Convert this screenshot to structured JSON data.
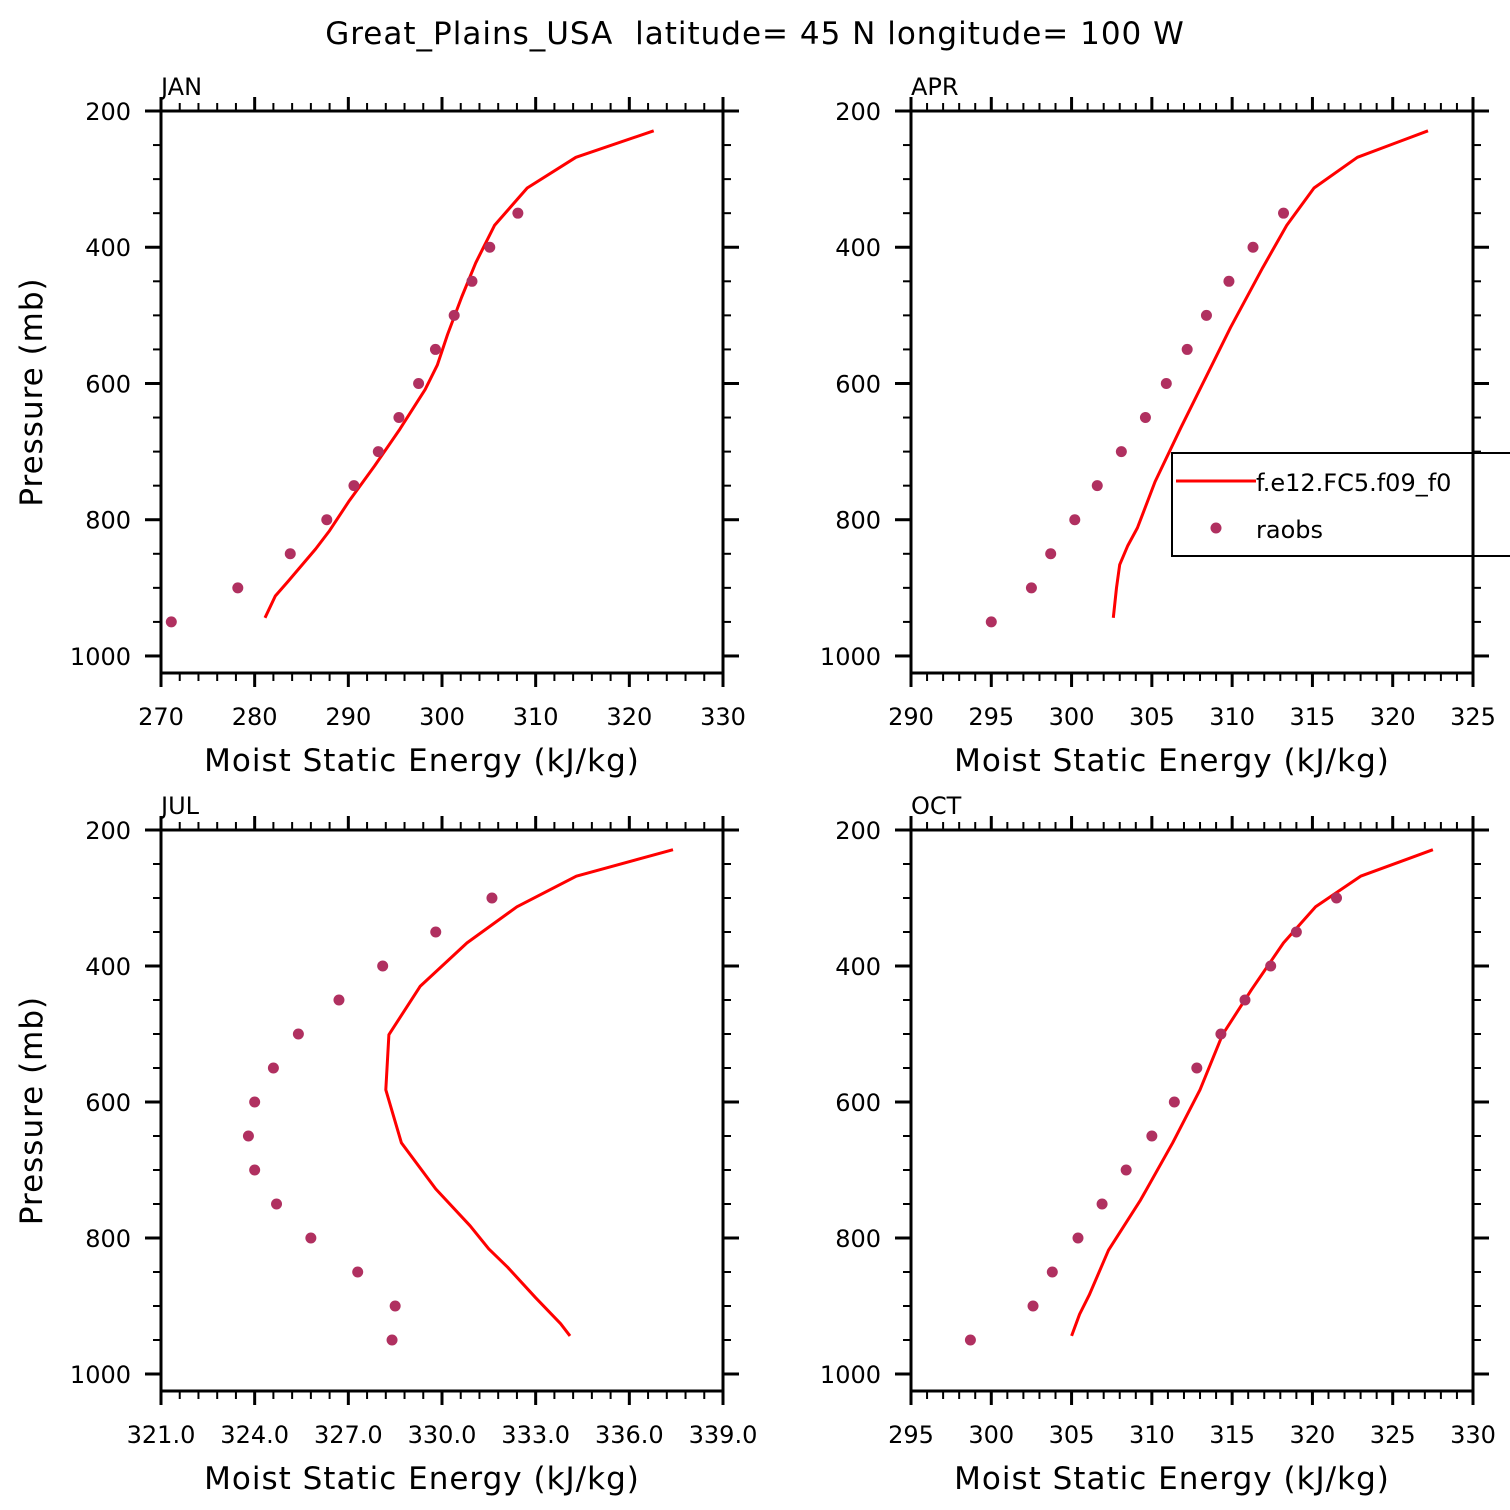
{
  "title": "Great_Plains_USA  latitude= 45 N longitude= 100 W",
  "colors": {
    "model_line": "#ff0000",
    "raobs_marker": "#b03060",
    "axes": "#000000"
  },
  "legend": {
    "placement": "right, over APR panel",
    "entries": [
      {
        "label": "f.e12.FC5.f09_f0",
        "style": "line",
        "color": "#ff0000"
      },
      {
        "label": "raobs",
        "style": "marker",
        "color": "#b03060"
      }
    ]
  },
  "chart_data": [
    {
      "type": "line",
      "panel_label": "JAN",
      "xlabel": "Moist Static Energy (kJ/kg)",
      "ylabel": "Pressure (mb)",
      "xlim": [
        270,
        330
      ],
      "ylim": [
        1025,
        200
      ],
      "y_inverted": true,
      "xticks": [
        "270",
        "280",
        "290",
        "300",
        "310",
        "320",
        "330"
      ],
      "yticks": [
        "200",
        "400",
        "600",
        "800",
        "1000"
      ],
      "series": [
        {
          "name": "f.e12.FC5.f09_f0",
          "style": "line",
          "x": [
            281.1,
            282.2,
            283.6,
            286.5,
            288.0,
            290.1,
            292.8,
            295.5,
            298.2,
            299.5,
            300.6,
            302.1,
            303.6,
            305.6,
            309.1,
            314.3,
            322.6
          ],
          "y": [
            944,
            912,
            890,
            843,
            816,
            772,
            721,
            667,
            609,
            573,
            528,
            473,
            423,
            368,
            313,
            268,
            229
          ]
        },
        {
          "name": "raobs",
          "style": "scatter",
          "x": [
            271.1,
            278.2,
            283.8,
            287.7,
            290.6,
            293.2,
            295.4,
            297.5,
            299.3,
            301.3,
            303.2,
            305.1,
            308.1
          ],
          "y": [
            950,
            900,
            850,
            800,
            750,
            700,
            650,
            600,
            550,
            500,
            450,
            400,
            350
          ]
        }
      ]
    },
    {
      "type": "line",
      "panel_label": "APR",
      "xlabel": "Moist Static Energy (kJ/kg)",
      "ylabel": "",
      "xlim": [
        290,
        325
      ],
      "ylim": [
        1025,
        200
      ],
      "y_inverted": true,
      "xticks": [
        "290",
        "295",
        "300",
        "305",
        "310",
        "315",
        "320",
        "325"
      ],
      "yticks": [
        "200",
        "400",
        "600",
        "800",
        "1000"
      ],
      "series": [
        {
          "name": "f.e12.FC5.f09_f0",
          "style": "line",
          "x": [
            302.6,
            302.8,
            303.0,
            303.5,
            304.1,
            305.2,
            306.8,
            308.3,
            309.9,
            311.9,
            313.4,
            315.1,
            317.8,
            322.2
          ],
          "y": [
            944,
            900,
            866,
            838,
            812,
            744,
            665,
            594,
            518,
            430,
            368,
            313,
            268,
            229
          ]
        },
        {
          "name": "raobs",
          "style": "scatter",
          "x": [
            295.0,
            297.5,
            298.7,
            300.2,
            301.6,
            303.1,
            304.6,
            305.9,
            307.2,
            308.4,
            309.8,
            311.3,
            313.2
          ],
          "y": [
            950,
            900,
            850,
            800,
            750,
            700,
            650,
            600,
            550,
            500,
            450,
            400,
            350
          ]
        }
      ]
    },
    {
      "type": "line",
      "panel_label": "JUL",
      "xlabel": "Moist Static Energy (kJ/kg)",
      "ylabel": "Pressure (mb)",
      "xlim": [
        321,
        339
      ],
      "ylim": [
        1025,
        200
      ],
      "y_inverted": true,
      "xticks": [
        "321.0",
        "324.0",
        "327.0",
        "330.0",
        "333.0",
        "336.0",
        "339.0"
      ],
      "yticks": [
        "200",
        "400",
        "600",
        "800",
        "1000"
      ],
      "series": [
        {
          "name": "f.e12.FC5.f09_f0",
          "style": "line",
          "x": [
            334.1,
            333.8,
            333.0,
            332.1,
            331.5,
            330.9,
            329.8,
            328.7,
            328.2,
            328.3,
            329.3,
            330.8,
            332.4,
            334.3,
            337.4
          ],
          "y": [
            944,
            926,
            888,
            843,
            816,
            782,
            728,
            660,
            582,
            501,
            430,
            366,
            313,
            268,
            229
          ]
        },
        {
          "name": "raobs",
          "style": "scatter",
          "x": [
            328.4,
            328.5,
            327.3,
            325.8,
            324.7,
            324.0,
            323.8,
            324.0,
            324.6,
            325.4,
            326.7,
            328.1,
            329.8,
            331.6
          ],
          "y": [
            950,
            900,
            850,
            800,
            750,
            700,
            650,
            600,
            550,
            500,
            450,
            400,
            350,
            300
          ]
        }
      ]
    },
    {
      "type": "line",
      "panel_label": "OCT",
      "xlabel": "Moist Static Energy (kJ/kg)",
      "ylabel": "",
      "xlim": [
        295,
        330
      ],
      "ylim": [
        1025,
        200
      ],
      "y_inverted": true,
      "xticks": [
        "295",
        "300",
        "305",
        "310",
        "315",
        "320",
        "325",
        "330"
      ],
      "yticks": [
        "200",
        "400",
        "600",
        "800",
        "1000"
      ],
      "series": [
        {
          "name": "f.e12.FC5.f09_f0",
          "style": "line",
          "x": [
            305.0,
            305.5,
            306.1,
            307.3,
            309.3,
            311.3,
            313.0,
            314.4,
            316.2,
            318.2,
            320.2,
            323.0,
            327.5
          ],
          "y": [
            944,
            912,
            884,
            818,
            744,
            660,
            582,
            501,
            435,
            366,
            313,
            268,
            229
          ]
        },
        {
          "name": "raobs",
          "style": "scatter",
          "x": [
            298.7,
            302.6,
            303.8,
            305.4,
            306.9,
            308.4,
            310.0,
            311.4,
            312.8,
            314.3,
            315.8,
            317.4,
            319.0,
            321.5
          ],
          "y": [
            950,
            900,
            850,
            800,
            750,
            700,
            650,
            600,
            550,
            500,
            450,
            400,
            350,
            300
          ]
        }
      ]
    }
  ]
}
